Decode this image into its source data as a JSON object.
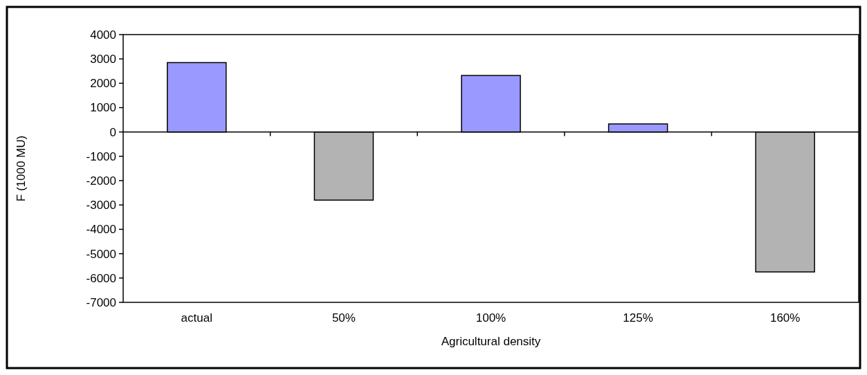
{
  "chart_data": {
    "type": "bar",
    "xlabel": "Agricultural density",
    "ylabel": "F (1000 MU)",
    "categories": [
      "actual",
      "50%",
      "100%",
      "125%",
      "160%"
    ],
    "values": [
      2850,
      -2800,
      2320,
      330,
      -5750
    ],
    "colors": [
      "#9999ff",
      "#b3b3b3",
      "#9999ff",
      "#9999ff",
      "#b3b3b3"
    ],
    "ylim": [
      -7000,
      4000
    ],
    "yticks": [
      4000,
      3000,
      2000,
      1000,
      0,
      -1000,
      -2000,
      -3000,
      -4000,
      -5000,
      -6000,
      -7000
    ]
  }
}
